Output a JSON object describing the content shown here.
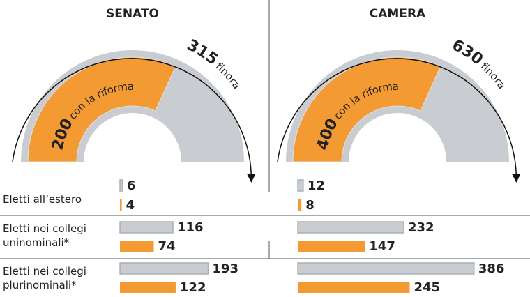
{
  "chart_data": {
    "type": "bar",
    "categories": [
      "Eletti all’estero",
      "Eletti nei collegi uninominali*",
      "Eletti nei collegi plurinominali*"
    ],
    "panels": [
      {
        "title": "SENATO",
        "totals": [
          315,
          200
        ],
        "series": [
          {
            "name": "finora",
            "color": "#c9cdd1",
            "values": [
              6,
              116,
              193
            ]
          },
          {
            "name": "con la riforma",
            "color": "#f39a33",
            "values": [
              4,
              74,
              122
            ]
          }
        ]
      },
      {
        "title": "CAMERA",
        "totals": [
          630,
          400
        ],
        "series": [
          {
            "name": "finora",
            "color": "#c9cdd1",
            "values": [
              12,
              232,
              386
            ]
          },
          {
            "name": "con la riforma",
            "color": "#f39a33",
            "values": [
              8,
              147,
              245
            ]
          }
        ]
      }
    ]
  }
}
